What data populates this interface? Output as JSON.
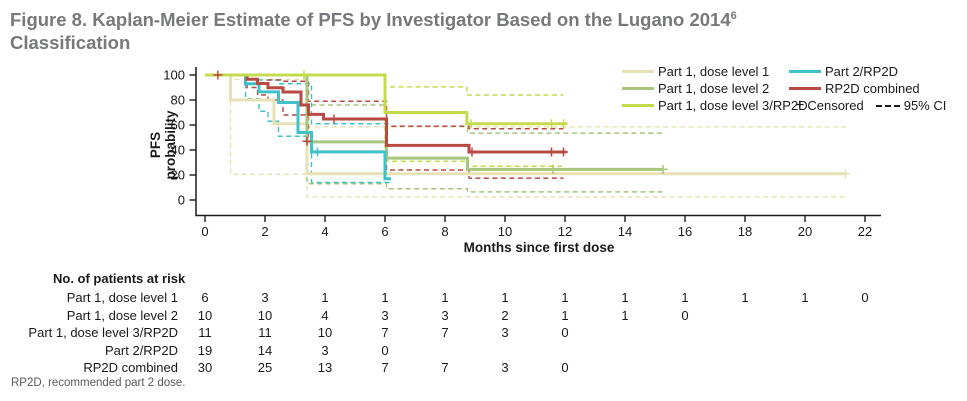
{
  "title": {
    "line1_pre": "Figure 8. Kaplan-Meier Estimate of PFS by Investigator Based on the Lugano 2014",
    "sup": "6",
    "line2": "Classification"
  },
  "legend": {
    "censored_symbol": "+",
    "censored_label": "Censored",
    "ci_label": "95% CI"
  },
  "chart_data": {
    "type": "line",
    "subtype": "kaplan-meier-step",
    "xlabel": "Months since first dose",
    "ylabel": "PFS probability",
    "xlim": [
      0,
      22
    ],
    "ylim": [
      0,
      100
    ],
    "xticks": [
      0,
      2,
      4,
      6,
      8,
      10,
      12,
      14,
      16,
      18,
      20,
      22
    ],
    "yticks": [
      0,
      20,
      40,
      60,
      80,
      100
    ],
    "grid": false,
    "legend_position": "top-right",
    "axis_color": "#1a1a1a",
    "series": [
      {
        "name": "Part 1, dose level 1",
        "color": "#e7e2b5",
        "steps": [
          [
            0,
            100
          ],
          [
            0.85,
            80
          ],
          [
            2.3,
            61
          ],
          [
            3.4,
            21
          ]
        ],
        "end": 21.35,
        "censors": [
          [
            21.35,
            21
          ]
        ],
        "ci_upper": {
          "steps": [
            [
              0.85,
              96.5
            ],
            [
              3.4,
              58.5
            ]
          ],
          "end": 21.35
        },
        "ci_lower": {
          "steps": [
            [
              0.85,
              20.5
            ],
            [
              3.4,
              2.5
            ]
          ],
          "end": 21.35
        }
      },
      {
        "name": "Part 1, dose level 2",
        "color": "#a7c57d",
        "steps": [
          [
            0,
            100
          ],
          [
            3.4,
            46.5
          ],
          [
            6.05,
            33.5
          ],
          [
            8.75,
            24.5
          ]
        ],
        "end": 15.27,
        "censors": [
          [
            11.6,
            24.5
          ],
          [
            15.27,
            24.5
          ]
        ],
        "ci_upper": {
          "steps": [
            [
              3.4,
              76
            ],
            [
              6.05,
              59
            ],
            [
              8.75,
              53.5
            ]
          ],
          "end": 15.27
        },
        "ci_lower": {
          "steps": [
            [
              3.4,
              13
            ],
            [
              6.05,
              9
            ],
            [
              8.75,
              6.5
            ]
          ],
          "end": 15.27
        }
      },
      {
        "name": "Part 1, dose level 3/RP2D",
        "color": "#c4db4e",
        "steps": [
          [
            0,
            100
          ],
          [
            6.0,
            70
          ],
          [
            8.73,
            61
          ]
        ],
        "end": 12.05,
        "censors": [
          [
            3.3,
            100
          ],
          [
            8.87,
            61
          ],
          [
            11.55,
            61
          ],
          [
            11.95,
            61
          ]
        ],
        "ci_upper": {
          "steps": [
            [
              6.0,
              90.5
            ],
            [
              8.73,
              84
            ]
          ],
          "end": 11.95
        },
        "ci_lower": {
          "steps": [
            [
              6.0,
              31
            ],
            [
              8.73,
              27
            ]
          ],
          "end": 11.95
        }
      },
      {
        "name": "Part 2/RP2D",
        "color": "#3fc1c9",
        "steps": [
          [
            0,
            100
          ],
          [
            1.35,
            93
          ],
          [
            1.8,
            86.5
          ],
          [
            2.45,
            78
          ],
          [
            3.1,
            54
          ],
          [
            3.55,
            38.5
          ],
          [
            6.0,
            17
          ]
        ],
        "end": 6.2,
        "censors": [
          [
            3.75,
            38.5
          ]
        ],
        "ci_upper": {
          "steps": [
            [
              1.35,
              99.5
            ],
            [
              1.8,
              96
            ],
            [
              2.45,
              93
            ],
            [
              3.55,
              61
            ]
          ],
          "end": 6.15
        },
        "ci_lower": {
          "steps": [
            [
              1.35,
              81
            ],
            [
              1.8,
              71
            ],
            [
              2.1,
              63
            ],
            [
              2.45,
              51
            ],
            [
              3.55,
              14
            ]
          ],
          "end": 6.15
        }
      },
      {
        "name": "RP2D combined",
        "color": "#b94a42",
        "steps": [
          [
            0,
            100
          ],
          [
            1.4,
            96.6
          ],
          [
            1.75,
            93.2
          ],
          [
            2.1,
            89.8
          ],
          [
            2.6,
            86.4
          ],
          [
            3.2,
            76
          ],
          [
            3.45,
            68.5
          ],
          [
            3.95,
            64.8
          ],
          [
            6.05,
            43.7
          ],
          [
            8.8,
            38.4
          ]
        ],
        "end": 12.05,
        "censors": [
          [
            0.43,
            100
          ],
          [
            3.4,
            47
          ],
          [
            4.3,
            64.8
          ],
          [
            8.9,
            38.4
          ],
          [
            11.55,
            38.4
          ],
          [
            11.95,
            38.4
          ]
        ],
        "ci_upper": {
          "steps": [
            [
              1.4,
              99.5
            ],
            [
              2.1,
              96
            ],
            [
              2.6,
              95
            ],
            [
              3.45,
              79
            ],
            [
              6.05,
              59
            ],
            [
              8.8,
              57
            ]
          ],
          "end": 11.95
        },
        "ci_lower": {
          "steps": [
            [
              1.4,
              90
            ],
            [
              1.75,
              84
            ],
            [
              2.1,
              80
            ],
            [
              2.6,
              68
            ],
            [
              3.45,
              47
            ],
            [
              6.05,
              24
            ],
            [
              8.8,
              17.5
            ]
          ],
          "end": 11.95
        }
      }
    ]
  },
  "risk_table": {
    "header": "No. of patients at risk",
    "month_step": 2,
    "rows": [
      {
        "label": "Part 1, dose level 1",
        "values": [
          6,
          3,
          1,
          1,
          1,
          1,
          1,
          1,
          1,
          1,
          1,
          0
        ]
      },
      {
        "label": "Part 1, dose level 2",
        "values": [
          10,
          10,
          4,
          3,
          3,
          2,
          1,
          1,
          0
        ]
      },
      {
        "label": "Part 1, dose level 3/RP2D",
        "values": [
          11,
          11,
          10,
          7,
          7,
          3,
          0
        ]
      },
      {
        "label": "Part 2/RP2D",
        "values": [
          19,
          14,
          3,
          0
        ]
      },
      {
        "label": "RP2D combined",
        "values": [
          30,
          25,
          13,
          7,
          7,
          3,
          0
        ]
      }
    ]
  },
  "footnote": "RP2D, recommended part 2 dose."
}
